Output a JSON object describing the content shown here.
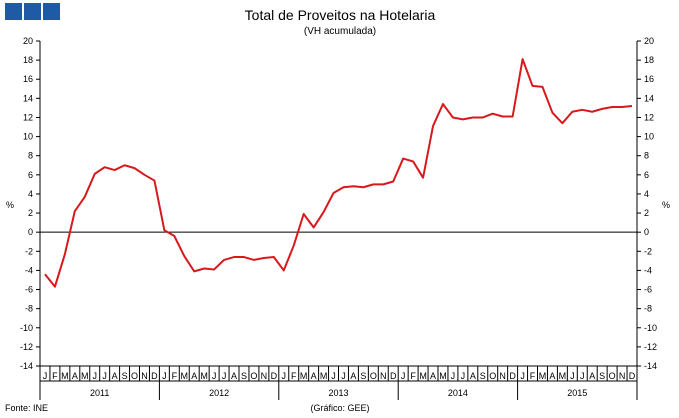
{
  "header": {
    "logo_colors": [
      "#1f5aa6",
      "#1f5aa6",
      "#1f5aa6"
    ]
  },
  "footer": {
    "source": "Fonte: INE",
    "credit": "(Gráfico: GEE)"
  },
  "chart_data": {
    "type": "line",
    "title": "Total de Proveitos na Hotelaria",
    "subtitle": "(VH acumulada)",
    "ylabel_left": "%",
    "ylabel_right": "%",
    "ylim": [
      -14,
      20
    ],
    "yticks": [
      -14,
      -12,
      -10,
      -8,
      -6,
      -4,
      -2,
      0,
      2,
      4,
      6,
      8,
      10,
      12,
      14,
      16,
      18,
      20
    ],
    "grid": false,
    "legend": "none",
    "line_color": "#d7191c",
    "month_labels": [
      "J",
      "F",
      "M",
      "A",
      "M",
      "J",
      "J",
      "A",
      "S",
      "O",
      "N",
      "D"
    ],
    "years": [
      "2011",
      "2012",
      "2013",
      "2014",
      "2015"
    ],
    "series": [
      {
        "values": [
          -4.4,
          -5.7,
          -2.3,
          2.2,
          3.7,
          6.1,
          6.8,
          6.5,
          7.0,
          6.7,
          6.0,
          5.4,
          0.2,
          -0.4,
          -2.5,
          -4.1,
          -3.8,
          -3.9,
          -2.9,
          -2.6,
          -2.6,
          -2.9,
          -2.7,
          -2.6,
          -4.0,
          -1.4,
          1.9,
          0.5,
          2.1,
          4.1,
          4.7,
          4.8,
          4.7,
          5.0,
          5.0,
          5.3,
          7.7,
          7.4,
          5.7,
          11.1,
          13.4,
          12.0,
          11.8,
          12.0,
          12.0,
          12.4,
          12.1,
          12.1,
          18.1,
          15.3,
          15.2,
          12.5,
          11.4,
          12.6,
          12.8,
          12.6,
          12.9,
          13.1,
          13.1,
          13.2
        ]
      }
    ]
  }
}
